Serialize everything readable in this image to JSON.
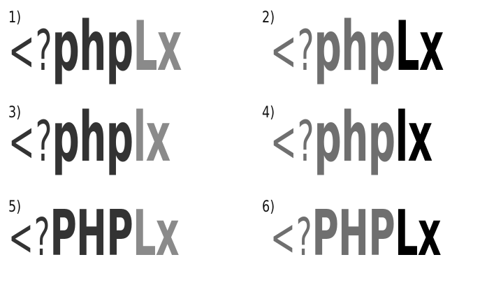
{
  "variants": [
    {
      "number": "1)",
      "lt": "<",
      "q": "?",
      "name": "php",
      "suffix": "Lx",
      "case": "lower",
      "colors": {
        "lt": "#333333",
        "q": "#333333",
        "name": "#333333",
        "suffix": "#8a8a8a"
      }
    },
    {
      "number": "2)",
      "lt": "<",
      "q": "?",
      "name": "php",
      "suffix": "Lx",
      "case": "lower",
      "colors": {
        "lt": "#6f6f6f",
        "q": "#6f6f6f",
        "name": "#6f6f6f",
        "suffix": "#000000"
      }
    },
    {
      "number": "3)",
      "lt": "<",
      "q": "?",
      "name": "php",
      "suffix": "lx",
      "case": "lower",
      "colors": {
        "lt": "#333333",
        "q": "#333333",
        "name": "#333333",
        "suffix": "#8a8a8a"
      }
    },
    {
      "number": "4)",
      "lt": "<",
      "q": "?",
      "name": "php",
      "suffix": "lx",
      "case": "lower",
      "colors": {
        "lt": "#6f6f6f",
        "q": "#6f6f6f",
        "name": "#6f6f6f",
        "suffix": "#000000"
      }
    },
    {
      "number": "5)",
      "lt": "<",
      "q": "?",
      "name": "PHP",
      "suffix": "Lx",
      "case": "upper",
      "colors": {
        "lt": "#333333",
        "q": "#333333",
        "name": "#333333",
        "suffix": "#8a8a8a"
      }
    },
    {
      "number": "6)",
      "lt": "<",
      "q": "?",
      "name": "PHP",
      "suffix": "Lx",
      "case": "upper",
      "colors": {
        "lt": "#6f6f6f",
        "q": "#6f6f6f",
        "name": "#6f6f6f",
        "suffix": "#000000"
      }
    }
  ]
}
